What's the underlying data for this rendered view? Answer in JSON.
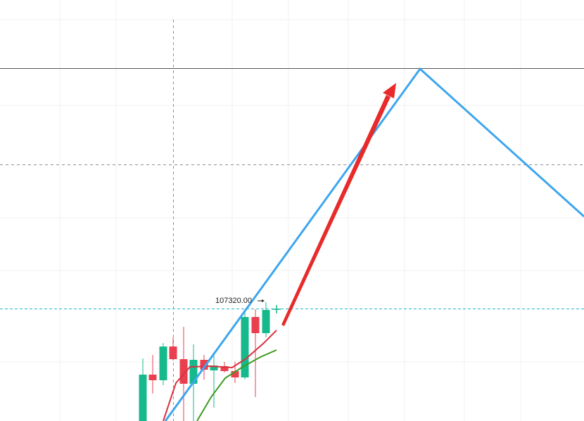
{
  "price_label": "107320.00"
}
